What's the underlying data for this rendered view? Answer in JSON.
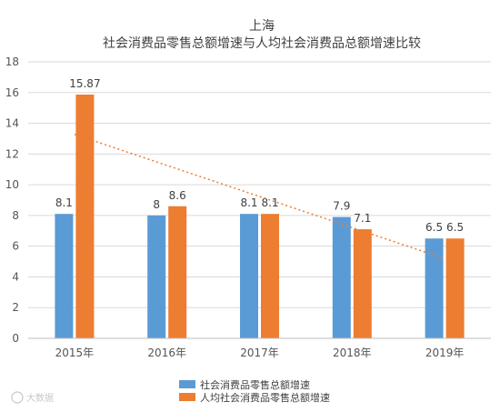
{
  "chart_data": {
    "type": "bar",
    "title": "上海",
    "subtitle": "社会消费品零售总额增速与人均社会消费品总额增速比较",
    "categories": [
      "2015年",
      "2016年",
      "2017年",
      "2018年",
      "2019年"
    ],
    "series": [
      {
        "name": "社会消费品零售总额增速",
        "values": [
          8.1,
          8,
          8.1,
          7.9,
          6.5
        ],
        "labels": [
          "8.1",
          "8",
          "8.1",
          "7.9",
          "6.5"
        ],
        "color": "#5B9BD5"
      },
      {
        "name": "人均社会消费品零售总额增速",
        "values": [
          15.87,
          8.6,
          8.1,
          7.1,
          6.5
        ],
        "labels": [
          "15.87",
          "8.6",
          "8.1",
          "7.1",
          "6.5"
        ],
        "color": "#ED7D31"
      }
    ],
    "trendline": {
      "series": 1,
      "type": "linear",
      "style": "dotted",
      "color": "#ED7D31"
    },
    "ylim": [
      0,
      18
    ],
    "yticks": [
      0,
      2,
      4,
      6,
      8,
      10,
      12,
      14,
      16,
      18
    ],
    "grid": true,
    "legend": "bottom"
  },
  "watermark": "大数据"
}
